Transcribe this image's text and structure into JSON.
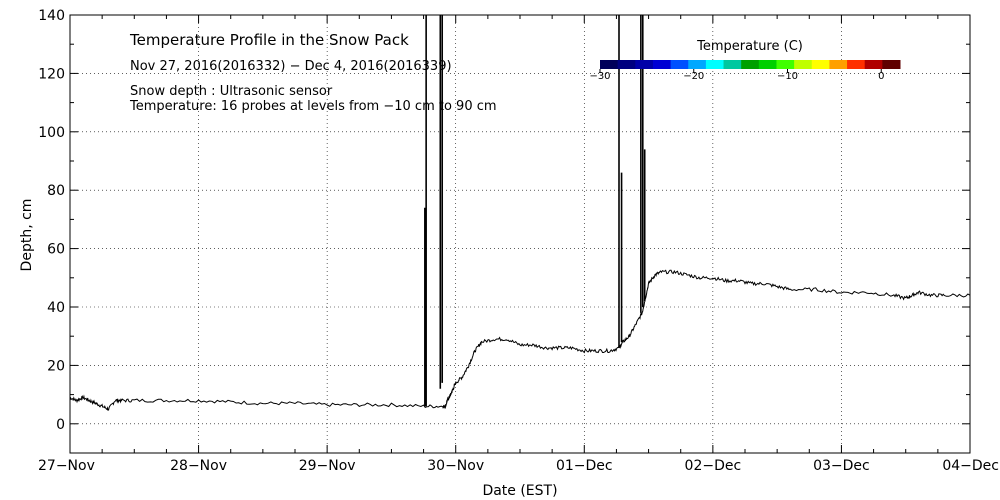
{
  "chart_data": {
    "type": "line",
    "title": "Temperature Profile in the Snow Pack",
    "subtitle": "Nov 27, 2016(2016332) − Dec  4, 2016(2016339)",
    "annotations": [
      "Snow depth : Ultrasonic sensor",
      "Temperature: 16 probes at levels from −10 cm to 90 cm"
    ],
    "xlabel": "Date (EST)",
    "ylabel": "Depth, cm",
    "ylim": [
      -10,
      140
    ],
    "xlim": [
      0,
      7
    ],
    "x_tick_labels": [
      "27−Nov",
      "28−Nov",
      "29−Nov",
      "30−Nov",
      "01−Dec",
      "02−Dec",
      "03−Dec",
      "04−Dec"
    ],
    "y_ticks": [
      0,
      20,
      40,
      60,
      80,
      100,
      120,
      140
    ],
    "grid": true,
    "colorbar": {
      "title": "Temperature (C)",
      "tick_labels": [
        "−30",
        "−20",
        "−10",
        "0"
      ],
      "range": [
        -30,
        2
      ],
      "colors": [
        "#00005a",
        "#000080",
        "#0000a8",
        "#0000d4",
        "#0050ff",
        "#00a8ff",
        "#00ffff",
        "#00c8a0",
        "#00a000",
        "#00d000",
        "#40ff00",
        "#c0ff00",
        "#ffff00",
        "#ffa000",
        "#ff3000",
        "#b00000",
        "#600000"
      ]
    },
    "series": [
      {
        "values_x": [
          0,
          0.05,
          0.1,
          0.15,
          0.2,
          0.25,
          0.3,
          0.35,
          0.4,
          0.5,
          0.75,
          1.0,
          1.25,
          1.5,
          1.75,
          2.0,
          2.25,
          2.5,
          2.75,
          2.9,
          2.92,
          2.935,
          2.95,
          2.96,
          2.98,
          3.0,
          3.05,
          3.1,
          3.15,
          3.2,
          3.3,
          3.4,
          3.5,
          3.6,
          3.7,
          3.8,
          3.9,
          4.0,
          4.1,
          4.2,
          4.27,
          4.3,
          4.35,
          4.4,
          4.45,
          4.47,
          4.5,
          4.55,
          4.6,
          4.7,
          4.8,
          4.9,
          5.0,
          5.1,
          5.2,
          5.3,
          5.4,
          5.5,
          5.6,
          5.8,
          6.0,
          6.2,
          6.4,
          6.5,
          6.55,
          6.6,
          6.7,
          6.8,
          7.0
        ],
        "values_y": [
          9,
          8,
          9,
          8,
          7,
          6,
          5,
          8,
          8,
          8,
          8,
          8,
          7.5,
          7,
          7,
          6.5,
          6.5,
          6.5,
          6,
          6,
          6,
          8,
          9,
          10,
          12,
          14,
          16,
          20,
          25,
          28,
          29,
          29,
          27,
          27,
          26,
          26,
          26,
          25,
          25,
          25,
          26,
          28,
          30,
          34,
          38,
          42,
          48,
          51,
          52,
          52,
          51,
          50,
          50,
          49,
          49,
          48,
          48,
          47,
          46,
          46,
          45,
          45,
          44,
          43,
          44,
          45,
          44,
          44,
          44
        ]
      }
    ],
    "spikes": [
      {
        "x": 2.76,
        "y": [
          6,
          74
        ]
      },
      {
        "x": 2.77,
        "y": [
          6,
          140
        ]
      },
      {
        "x": 2.88,
        "y": [
          12,
          140
        ]
      },
      {
        "x": 2.895,
        "y": [
          14,
          140
        ]
      },
      {
        "x": 4.27,
        "y": [
          26,
          140
        ]
      },
      {
        "x": 4.29,
        "y": [
          28,
          86
        ]
      },
      {
        "x": 4.44,
        "y": [
          38,
          140
        ]
      },
      {
        "x": 4.455,
        "y": [
          40,
          140
        ]
      },
      {
        "x": 4.47,
        "y": [
          42,
          94
        ]
      }
    ]
  }
}
